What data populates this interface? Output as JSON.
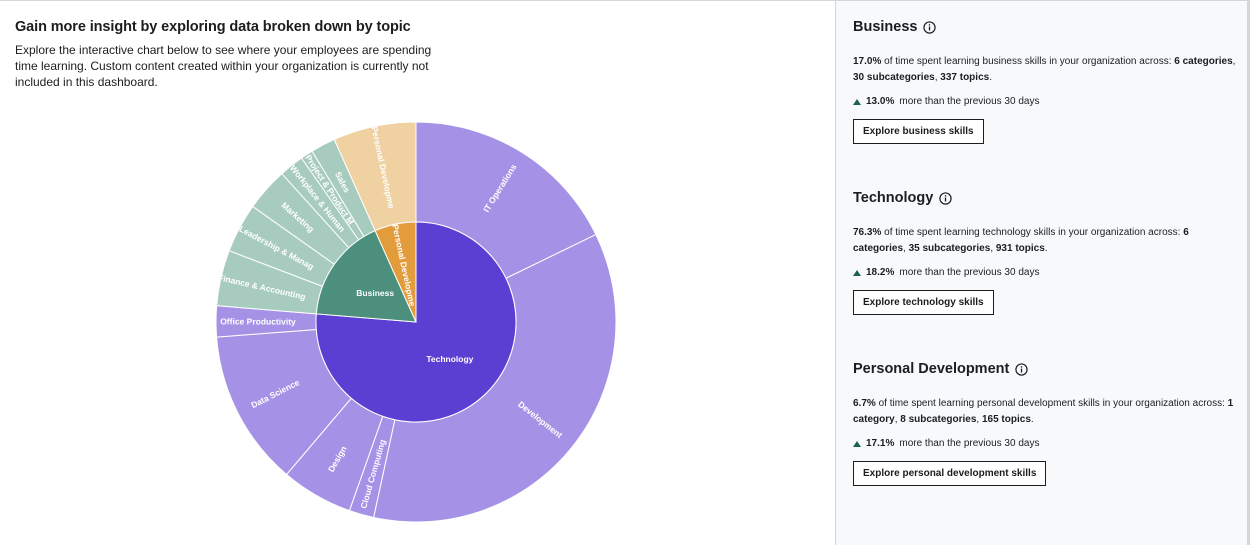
{
  "header": {
    "title": "Gain more insight by exploring data broken down by topic",
    "description": "Explore the interactive chart below to see where your employees are spending time learning. Custom content created within your organization is currently not included in this dashboard."
  },
  "chart_data": {
    "type": "sunburst",
    "title": "Gain more insight by exploring data broken down by topic",
    "colors": {
      "technology_inner": "#5b3fd2",
      "technology_outer": "#a592e6",
      "business_inner": "#4b8f7c",
      "business_outer": "#a8cbc0",
      "personal_inner": "#e29c3c",
      "personal_outer": "#f0d1a2",
      "stroke": "#ffffff"
    },
    "inner": [
      {
        "name": "Technology",
        "value": 76.3,
        "color": "#5b3fd2",
        "label": "Technology"
      },
      {
        "name": "Business",
        "value": 17.0,
        "color": "#4b8f7c",
        "label": "Business"
      },
      {
        "name": "Personal Development",
        "value": 6.7,
        "color": "#e29c3c",
        "label": "Personal Developme"
      }
    ],
    "outer": [
      {
        "parent": "Technology",
        "name": "IT Operations",
        "label": "IT Operations",
        "value": 17.8
      },
      {
        "parent": "Technology",
        "name": "Development",
        "label": "Development",
        "value": 35.6
      },
      {
        "parent": "Technology",
        "name": "Cloud Computing",
        "label": "Cloud Computing",
        "value": 2.0
      },
      {
        "parent": "Technology",
        "name": "Design",
        "label": "Design",
        "value": 5.8
      },
      {
        "parent": "Technology",
        "name": "Data Science",
        "label": "Data Science",
        "value": 12.6
      },
      {
        "parent": "Technology",
        "name": "Office Productivity",
        "label": "Office Productivity",
        "value": 2.5
      },
      {
        "parent": "Business",
        "name": "Finance & Accounting",
        "label": "Finance & Accounting",
        "value": 4.5
      },
      {
        "parent": "Business",
        "name": "Leadership & Management",
        "label": "Leadership & Manag",
        "value": 4.0
      },
      {
        "parent": "Business",
        "name": "Marketing",
        "label": "Marketing",
        "value": 3.5
      },
      {
        "parent": "Business",
        "name": "Workplace & Human",
        "label": "Workplace & Human",
        "value": 2.0
      },
      {
        "parent": "Business",
        "name": "Project & Product Management",
        "label": "Project & Product M",
        "value": 1.0
      },
      {
        "parent": "Business",
        "name": "Sales",
        "label": "Sales",
        "value": 2.0
      },
      {
        "parent": "Personal Development",
        "name": "Personal Development",
        "label": "Personal Developme",
        "value": 6.7
      }
    ]
  },
  "panels": [
    {
      "title": "Business",
      "pct": "17.0%",
      "text1": " of time spent learning business skills in your organization across: ",
      "b1": "6 categories",
      "sep1": ", ",
      "b2": "30 subcategories",
      "sep2": ", ",
      "b3": "337 topics",
      "end": ".",
      "change_pct": "13.0%",
      "change_text": "more than the previous 30 days",
      "button": "Explore business skills"
    },
    {
      "title": "Technology",
      "pct": "76.3%",
      "text1": " of time spent learning technology skills in your organization across: ",
      "b1": "6 categories",
      "sep1": ", ",
      "b2": "35 subcategories",
      "sep2": ", ",
      "b3": "931 topics",
      "end": ".",
      "change_pct": "18.2%",
      "change_text": "more than the previous 30 days",
      "button": "Explore technology skills"
    },
    {
      "title": "Personal Development",
      "pct": "6.7%",
      "text1": " of time spent learning personal development skills in your organization across: ",
      "b1": "1 category",
      "sep1": ", ",
      "b2": "8 subcategories",
      "sep2": ", ",
      "b3": "165 topics",
      "end": ".",
      "change_pct": "17.1%",
      "change_text": "more than the previous 30 days",
      "button": "Explore personal development skills"
    }
  ]
}
